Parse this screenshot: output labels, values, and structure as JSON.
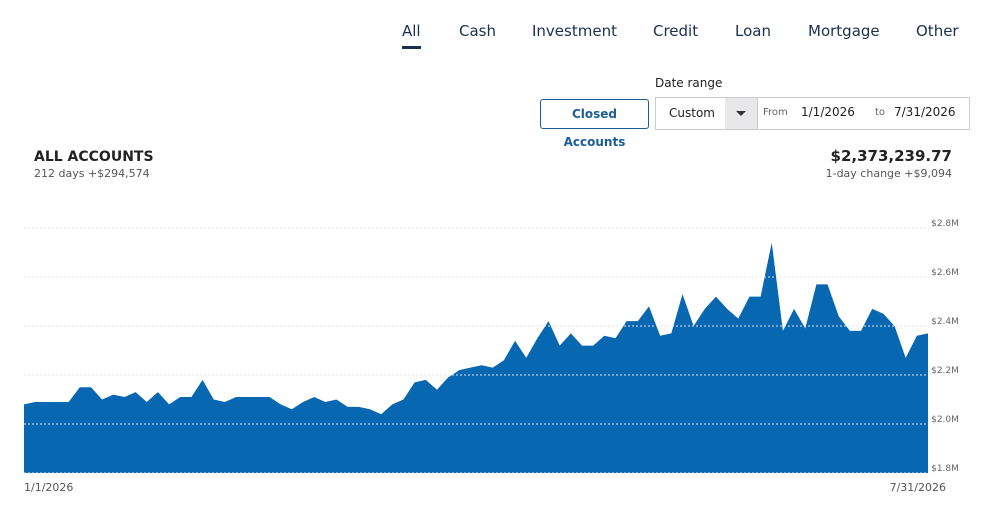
{
  "tabs": [
    "All",
    "Cash",
    "Investment",
    "Credit",
    "Loan",
    "Mortgage",
    "Other"
  ],
  "active_tab": "All",
  "date_range": {
    "label": "Date range",
    "closed_accounts": "Closed Accounts",
    "select": "Custom",
    "from_label": "From",
    "from": "1/1/2026",
    "to_label": "to",
    "to": "7/31/2026"
  },
  "summary": {
    "title": "ALL ACCOUNTS",
    "subtitle": "212 days +$294,574",
    "total": "$2,373,239.77",
    "change": "1-day change +$9,094"
  },
  "chart_data": {
    "type": "area",
    "categories": [
      "1/1/2026",
      null,
      null,
      null,
      null,
      null,
      null,
      null,
      null,
      null,
      null,
      null,
      null,
      null,
      null,
      null,
      null,
      null,
      null,
      null,
      null,
      null,
      null,
      null,
      null,
      null,
      null,
      null,
      null,
      null,
      null,
      null,
      null,
      null,
      null,
      null,
      null,
      null,
      null,
      null,
      null,
      null,
      null,
      null,
      null,
      null,
      null,
      null,
      null,
      null,
      null,
      null,
      null,
      null,
      null,
      null,
      null,
      null,
      null,
      null,
      null,
      null,
      null,
      null,
      null,
      null,
      null,
      null,
      null,
      null,
      null,
      null,
      null,
      null,
      null,
      null,
      null,
      null,
      null,
      null,
      null,
      "7/31/2026"
    ],
    "series": [
      {
        "color": "#0767b0",
        "values": [
          2.08,
          2.09,
          2.09,
          2.09,
          2.09,
          2.15,
          2.15,
          2.1,
          2.12,
          2.11,
          2.13,
          2.09,
          2.13,
          2.08,
          2.11,
          2.11,
          2.18,
          2.1,
          2.09,
          2.11,
          2.11,
          2.11,
          2.11,
          2.08,
          2.06,
          2.09,
          2.11,
          2.09,
          2.1,
          2.07,
          2.07,
          2.06,
          2.04,
          2.08,
          2.1,
          2.17,
          2.18,
          2.14,
          2.19,
          2.22,
          2.23,
          2.24,
          2.23,
          2.26,
          2.34,
          2.27,
          2.35,
          2.42,
          2.32,
          2.37,
          2.32,
          2.32,
          2.36,
          2.35,
          2.42,
          2.42,
          2.48,
          2.36,
          2.37,
          2.53,
          2.4,
          2.47,
          2.52,
          2.47,
          2.43,
          2.52,
          2.52,
          2.74,
          2.38,
          2.47,
          2.39,
          2.57,
          2.57,
          2.44,
          2.38,
          2.38,
          2.47,
          2.45,
          2.4,
          2.27,
          2.36,
          2.37
        ]
      }
    ],
    "ylim": [
      1.8,
      2.8
    ],
    "yticks": [
      {
        "value": 1.8,
        "label": "$1.8M"
      },
      {
        "value": 2.0,
        "label": "$2.0M"
      },
      {
        "value": 2.2,
        "label": "$2.2M"
      },
      {
        "value": 2.4,
        "label": "$2.4M"
      },
      {
        "value": 2.6,
        "label": "$2.6M"
      },
      {
        "value": 2.8,
        "label": "$2.8M"
      }
    ],
    "grid": true
  }
}
